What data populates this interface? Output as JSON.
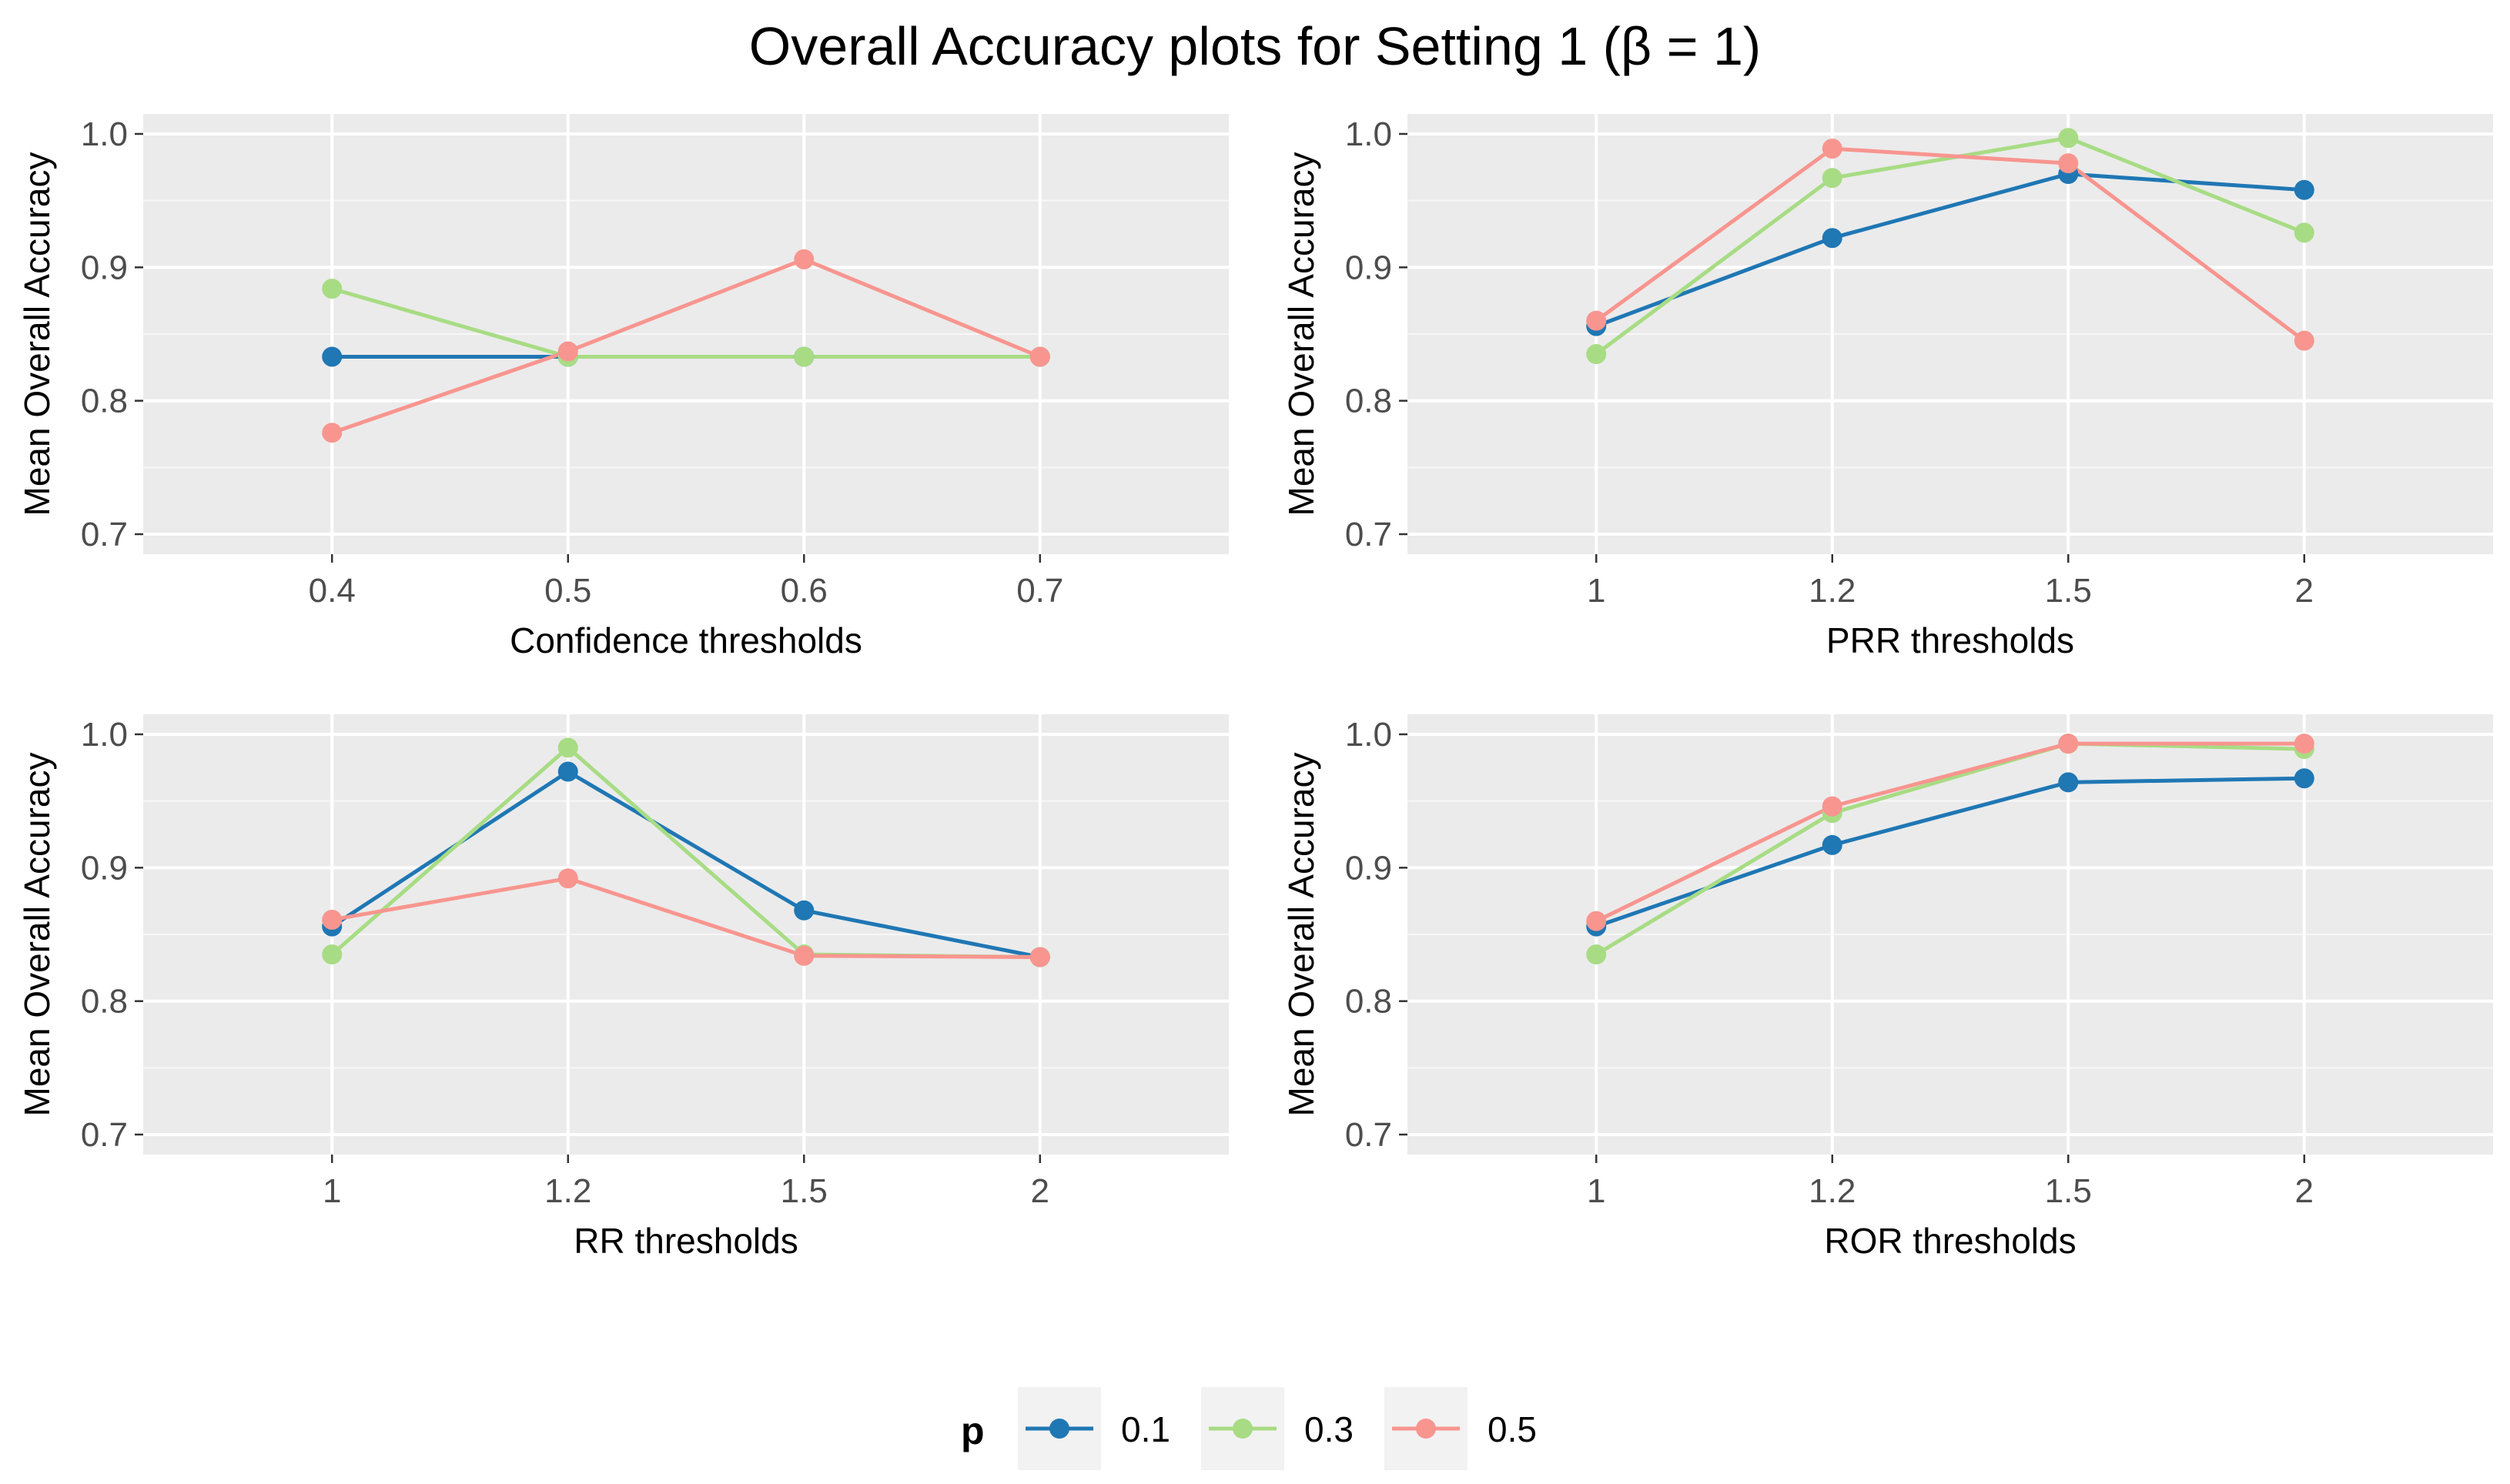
{
  "figure_title": "Overall Accuracy plots for Setting 1 (β = 1)",
  "legend": {
    "title": "p",
    "entries": [
      {
        "label": "0.1",
        "color": "#1f77b4"
      },
      {
        "label": "0.3",
        "color": "#a8dc84"
      },
      {
        "label": "0.5",
        "color": "#f8958f"
      }
    ]
  },
  "chart_data": [
    {
      "type": "line",
      "title": "",
      "xlabel": "Confidence thresholds",
      "ylabel": "Mean Overall Accuracy",
      "categories": [
        "0.4",
        "0.5",
        "0.6",
        "0.7"
      ],
      "ylim": [
        0.685,
        1.015
      ],
      "yticks": [
        "0.7",
        "0.8",
        "0.9",
        "1.0"
      ],
      "series": [
        {
          "name": "0.1",
          "values": [
            0.833,
            0.833,
            0.833,
            0.833
          ]
        },
        {
          "name": "0.3",
          "values": [
            0.884,
            0.833,
            0.833,
            0.833
          ]
        },
        {
          "name": "0.5",
          "values": [
            0.776,
            0.837,
            0.906,
            0.833
          ]
        }
      ]
    },
    {
      "type": "line",
      "title": "",
      "xlabel": "PRR thresholds",
      "ylabel": "Mean Overall Accuracy",
      "categories": [
        "1",
        "1.2",
        "1.5",
        "2"
      ],
      "ylim": [
        0.685,
        1.015
      ],
      "yticks": [
        "0.7",
        "0.8",
        "0.9",
        "1.0"
      ],
      "series": [
        {
          "name": "0.1",
          "values": [
            0.856,
            0.922,
            0.97,
            0.958
          ]
        },
        {
          "name": "0.3",
          "values": [
            0.835,
            0.967,
            0.997,
            0.926
          ]
        },
        {
          "name": "0.5",
          "values": [
            0.86,
            0.989,
            0.978,
            0.845
          ]
        }
      ]
    },
    {
      "type": "line",
      "title": "",
      "xlabel": "RR thresholds",
      "ylabel": "Mean Overall Accuracy",
      "categories": [
        "1",
        "1.2",
        "1.5",
        "2"
      ],
      "ylim": [
        0.685,
        1.015
      ],
      "yticks": [
        "0.7",
        "0.8",
        "0.9",
        "1.0"
      ],
      "series": [
        {
          "name": "0.1",
          "values": [
            0.856,
            0.972,
            0.868,
            0.833
          ]
        },
        {
          "name": "0.3",
          "values": [
            0.835,
            0.99,
            0.835,
            0.833
          ]
        },
        {
          "name": "0.5",
          "values": [
            0.861,
            0.892,
            0.834,
            0.833
          ]
        }
      ]
    },
    {
      "type": "line",
      "title": "",
      "xlabel": "ROR thresholds",
      "ylabel": "Mean Overall Accuracy",
      "categories": [
        "1",
        "1.2",
        "1.5",
        "2"
      ],
      "ylim": [
        0.685,
        1.015
      ],
      "yticks": [
        "0.7",
        "0.8",
        "0.9",
        "1.0"
      ],
      "series": [
        {
          "name": "0.1",
          "values": [
            0.856,
            0.917,
            0.964,
            0.967
          ]
        },
        {
          "name": "0.3",
          "values": [
            0.835,
            0.941,
            0.993,
            0.989
          ]
        },
        {
          "name": "0.5",
          "values": [
            0.86,
            0.946,
            0.993,
            0.993
          ]
        }
      ]
    }
  ]
}
